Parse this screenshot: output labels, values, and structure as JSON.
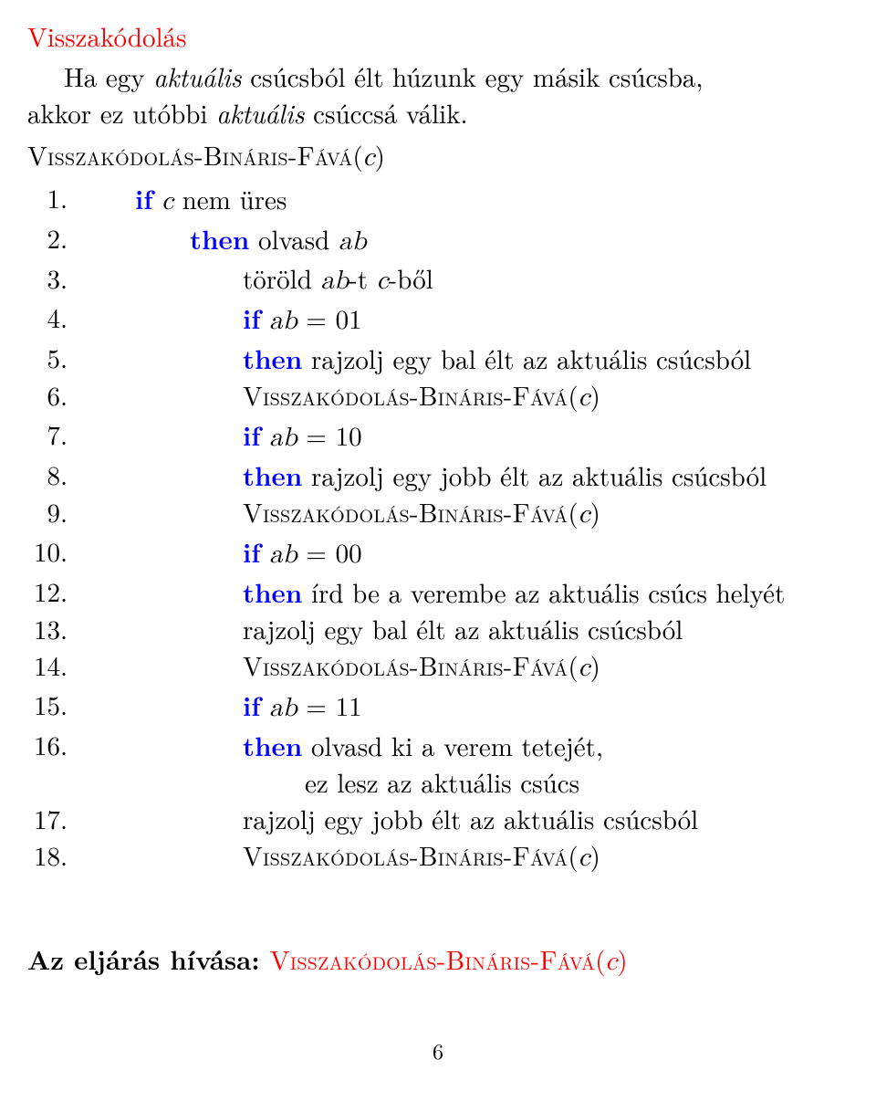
{
  "colors": {
    "title": "#ff0000",
    "keyword": "#0000ff",
    "text": "#000000",
    "background": "#ffffff"
  },
  "fonts": {
    "body_family": "Computer Modern / Times-like serif",
    "body_size_pt": 22,
    "smallcaps_for_procnames": true
  },
  "title": "Visszakódolás",
  "intro": {
    "line1_pre": "Ha egy ",
    "line1_em": "aktuális",
    "line1_post": " csúcsból élt húzunk egy másik csúcsba,",
    "line2_pre": "akkor ez utóbbi ",
    "line2_em": "aktuális",
    "line2_post": " csúccsá válik."
  },
  "proc": {
    "name": "Visszakódolás-Bináris-Fává",
    "arg": "c"
  },
  "kw": {
    "if": "if",
    "then": "then"
  },
  "lines": [
    {
      "n": "1.",
      "indent": 1,
      "parts": [
        {
          "t": "kw",
          "v": "if"
        },
        {
          "t": "sp"
        },
        {
          "t": "mi",
          "v": "c"
        },
        {
          "t": "txt",
          "v": " nem üres"
        }
      ]
    },
    {
      "n": "2.",
      "indent": 2,
      "parts": [
        {
          "t": "kw",
          "v": "then"
        },
        {
          "t": "txt",
          "v": " olvasd "
        },
        {
          "t": "mi",
          "v": "ab"
        }
      ]
    },
    {
      "n": "3.",
      "indent": 3,
      "parts": [
        {
          "t": "txt",
          "v": "töröld "
        },
        {
          "t": "mi",
          "v": "ab"
        },
        {
          "t": "txt",
          "v": "-t "
        },
        {
          "t": "mi",
          "v": "c"
        },
        {
          "t": "txt",
          "v": "-ből"
        }
      ]
    },
    {
      "n": "4.",
      "indent": 3,
      "parts": [
        {
          "t": "kw",
          "v": "if"
        },
        {
          "t": "sp"
        },
        {
          "t": "mi",
          "v": "ab"
        },
        {
          "t": "txt",
          "v": " = 01"
        }
      ]
    },
    {
      "n": "5.",
      "indent": 3,
      "parts": [
        {
          "t": "kw",
          "v": "then"
        },
        {
          "t": "txt",
          "v": " rajzolj egy bal élt az aktuális csúcsból"
        }
      ]
    },
    {
      "n": "6.",
      "indent": 3,
      "parts": [
        {
          "t": "proc"
        }
      ]
    },
    {
      "n": "7.",
      "indent": 3,
      "parts": [
        {
          "t": "kw",
          "v": "if"
        },
        {
          "t": "sp"
        },
        {
          "t": "mi",
          "v": "ab"
        },
        {
          "t": "txt",
          "v": " = 10"
        }
      ]
    },
    {
      "n": "8.",
      "indent": 3,
      "parts": [
        {
          "t": "kw",
          "v": "then"
        },
        {
          "t": "txt",
          "v": " rajzolj egy jobb élt az aktuális csúcsból"
        }
      ]
    },
    {
      "n": "9.",
      "indent": 3,
      "parts": [
        {
          "t": "proc"
        }
      ]
    },
    {
      "n": "10.",
      "indent": 3,
      "parts": [
        {
          "t": "kw",
          "v": "if"
        },
        {
          "t": "sp"
        },
        {
          "t": "mi",
          "v": "ab"
        },
        {
          "t": "txt",
          "v": " = 00"
        }
      ]
    },
    {
      "n": "12.",
      "indent": 3,
      "parts": [
        {
          "t": "kw",
          "v": "then"
        },
        {
          "t": "txt",
          "v": " írd be a verembe az aktuális csúcs helyét"
        }
      ]
    },
    {
      "n": "13.",
      "indent": 3,
      "parts": [
        {
          "t": "txt",
          "v": "rajzolj egy bal élt az aktuális csúcsból"
        }
      ]
    },
    {
      "n": "14.",
      "indent": 3,
      "parts": [
        {
          "t": "proc"
        }
      ]
    },
    {
      "n": "15.",
      "indent": 3,
      "parts": [
        {
          "t": "kw",
          "v": "if"
        },
        {
          "t": "sp"
        },
        {
          "t": "mi",
          "v": "ab"
        },
        {
          "t": "txt",
          "v": " = 11"
        }
      ]
    },
    {
      "n": "16.",
      "indent": 3,
      "parts": [
        {
          "t": "kw",
          "v": "then"
        },
        {
          "t": "txt",
          "v": " olvasd ki a verem tetejét,"
        }
      ]
    },
    {
      "n": "",
      "indent": 0,
      "cont": true,
      "parts": [
        {
          "t": "txt",
          "v": "ez lesz az aktuális csúcs"
        }
      ]
    },
    {
      "n": "17.",
      "indent": 3,
      "parts": [
        {
          "t": "txt",
          "v": "rajzolj egy jobb élt az aktuális csúcsból"
        }
      ]
    },
    {
      "n": "18.",
      "indent": 3,
      "parts": [
        {
          "t": "proc"
        }
      ]
    }
  ],
  "footer": {
    "label": "Az eljárás hívása: "
  },
  "page_number": "6"
}
